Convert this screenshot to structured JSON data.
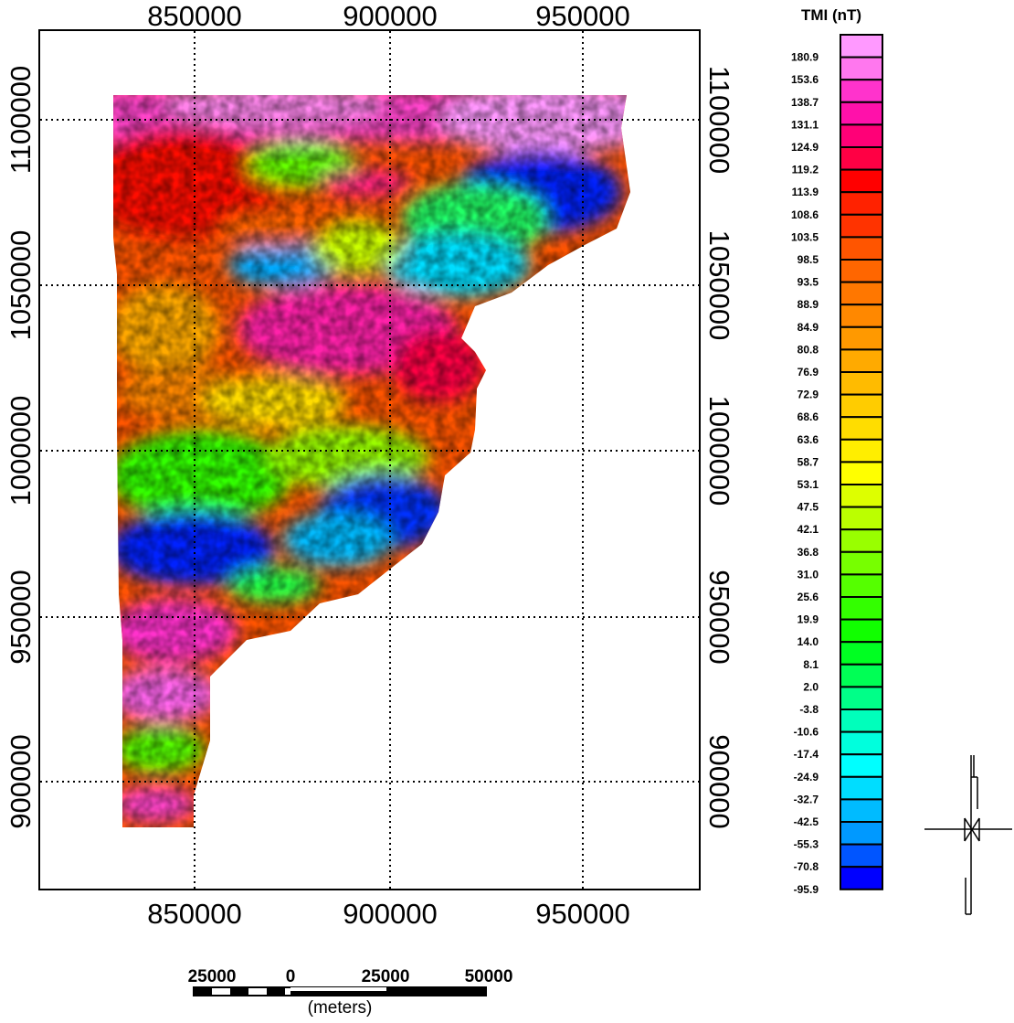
{
  "map": {
    "x_ticks": [
      "850000",
      "900000",
      "950000"
    ],
    "y_ticks_left": [
      "1100000",
      "1050000",
      "1000000",
      "950000",
      "900000"
    ],
    "y_ticks_right": [
      "1100000",
      "1050000",
      "1000000",
      "950000",
      "900000"
    ]
  },
  "legend": {
    "title": "TMI (nT)",
    "labels": [
      "180.9",
      "153.6",
      "138.7",
      "131.1",
      "124.9",
      "119.2",
      "113.9",
      "108.6",
      "103.5",
      "98.5",
      "93.5",
      "88.9",
      "84.9",
      "80.8",
      "76.9",
      "72.9",
      "68.6",
      "63.6",
      "58.7",
      "53.1",
      "47.5",
      "42.1",
      "36.8",
      "31.0",
      "25.6",
      "19.9",
      "14.0",
      "8.1",
      "2.0",
      "-3.8",
      "-10.6",
      "-17.4",
      "-24.9",
      "-32.7",
      "-42.5",
      "-55.3",
      "-70.8",
      "-95.9"
    ],
    "colors": [
      "#ff99ff",
      "#ff77ee",
      "#ff33cc",
      "#ff11aa",
      "#ff0077",
      "#ff0044",
      "#ff0000",
      "#ff2200",
      "#ff3300",
      "#ff5500",
      "#ff6600",
      "#ff7700",
      "#ff8800",
      "#ff9900",
      "#ffaa00",
      "#ffbb00",
      "#ffcc00",
      "#ffdd00",
      "#ffee00",
      "#ffff00",
      "#ddff00",
      "#bbff00",
      "#99ff00",
      "#77ff00",
      "#55ff00",
      "#33ff00",
      "#11ff00",
      "#00ff22",
      "#00ff55",
      "#00ff88",
      "#00ffbb",
      "#00ffdd",
      "#00ffff",
      "#00ddff",
      "#00bbff",
      "#0099ff",
      "#0055ff",
      "#0000ff"
    ]
  },
  "scale_bar": {
    "labels": [
      "25000",
      "0",
      "25000",
      "50000"
    ],
    "unit": "(meters)"
  },
  "north_arrow": {
    "icon": "north-arrow-icon"
  }
}
